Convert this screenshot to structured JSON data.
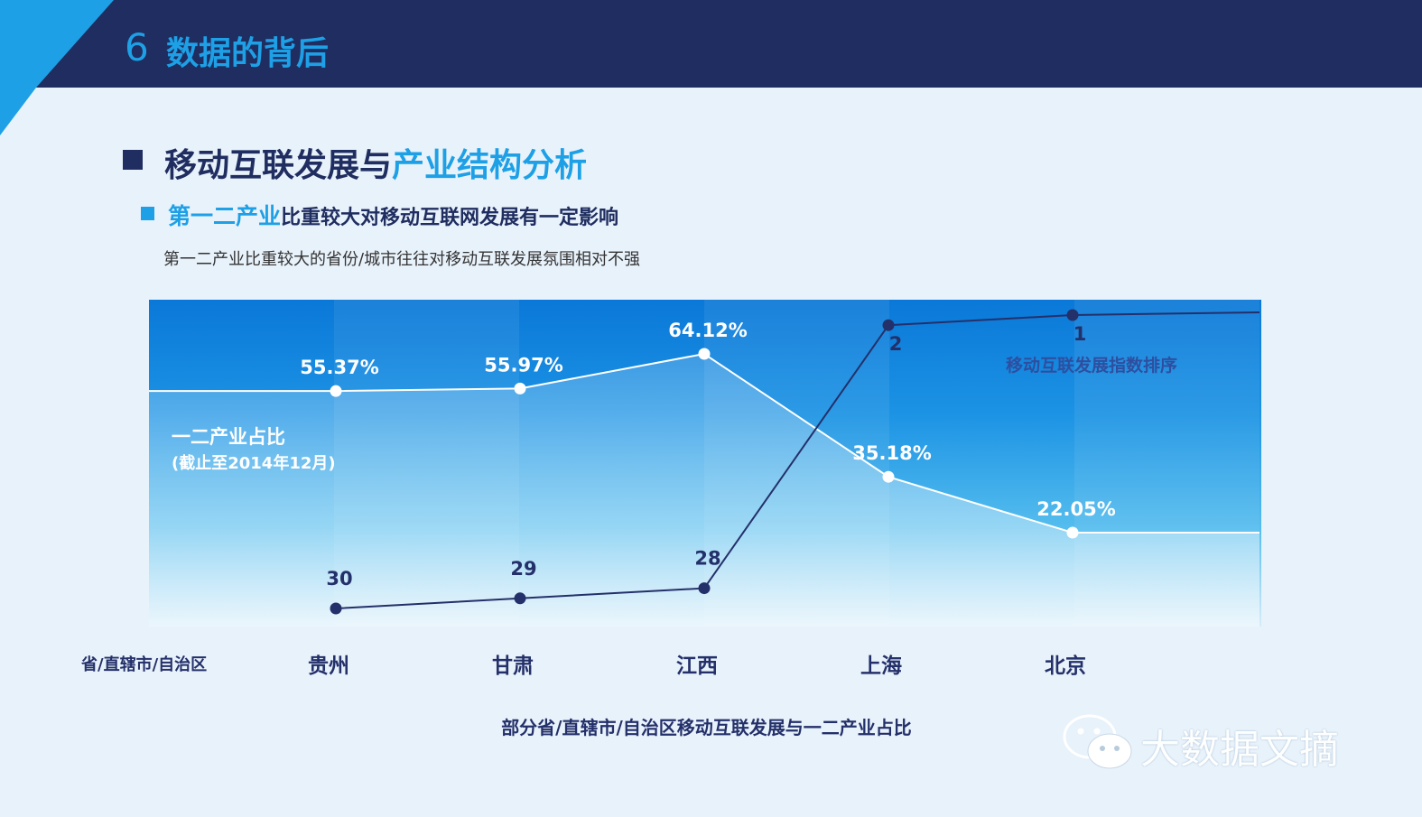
{
  "header": {
    "section_number": "6",
    "section_title": "数据的背后"
  },
  "main_title": {
    "part1": "移动互联发展与",
    "part2": "产业结构分析"
  },
  "sub_title": {
    "part1": "第一二产业",
    "part2": "比重较大对移动互联网发展有一定影响"
  },
  "description": "第一二产业比重较大的省份/城市往往对移动互联发展氛围相对不强",
  "axis_label": "省/直辖市/自治区",
  "caption": "部分省/直辖市/自治区移动互联发展与一二产业占比",
  "watermark": "大数据文摘",
  "colors": {
    "header": "#1f2d60",
    "accent": "#1ea0e6",
    "rank_line": "#24306a",
    "share_line": "#ffffff"
  },
  "chart_data": {
    "type": "line",
    "categories": [
      "贵州",
      "甘肃",
      "江西",
      "上海",
      "北京"
    ],
    "series": [
      {
        "name": "一二产业占比",
        "name_note": "(截止至2014年12月)",
        "values": [
          55.37,
          55.97,
          64.12,
          35.18,
          22.05
        ],
        "labels": [
          "55.37%",
          "55.97%",
          "64.12%",
          "35.18%",
          "22.05%"
        ]
      },
      {
        "name": "移动互联发展指数排序",
        "values": [
          30,
          29,
          28,
          2,
          1
        ],
        "labels": [
          "30",
          "29",
          "28",
          "2",
          "1"
        ]
      }
    ]
  }
}
